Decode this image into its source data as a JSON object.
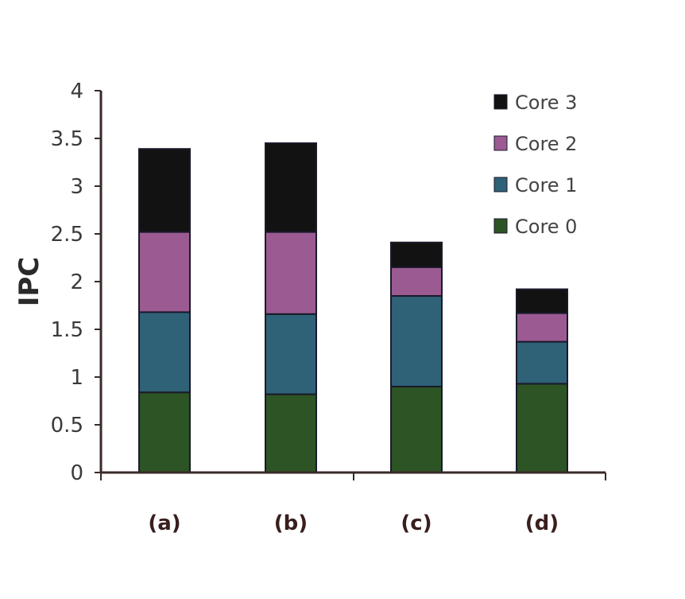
{
  "chart_data": {
    "type": "bar",
    "stacked": true,
    "categories": [
      "(a)",
      "(b)",
      "(c)",
      "(d)"
    ],
    "series": [
      {
        "name": "Core 0",
        "color": "#2d5424",
        "values": [
          0.84,
          0.82,
          0.9,
          0.93
        ]
      },
      {
        "name": "Core 1",
        "color": "#2f6177",
        "values": [
          0.84,
          0.84,
          0.95,
          0.44
        ]
      },
      {
        "name": "Core 2",
        "color": "#9b5b92",
        "values": [
          0.84,
          0.86,
          0.3,
          0.3
        ]
      },
      {
        "name": "Core 3",
        "color": "#121212",
        "values": [
          0.87,
          0.93,
          0.26,
          0.25
        ]
      }
    ],
    "ylabel": "IPC",
    "xlabel": "",
    "ylim": [
      0,
      4
    ],
    "yticks": [
      "0",
      "0.5",
      "1",
      "1.5",
      "2",
      "2.5",
      "3",
      "3.5",
      "4"
    ],
    "grid": false,
    "legend_position": "top-right",
    "legend_order": [
      "Core 3",
      "Core 2",
      "Core 1",
      "Core 0"
    ]
  }
}
